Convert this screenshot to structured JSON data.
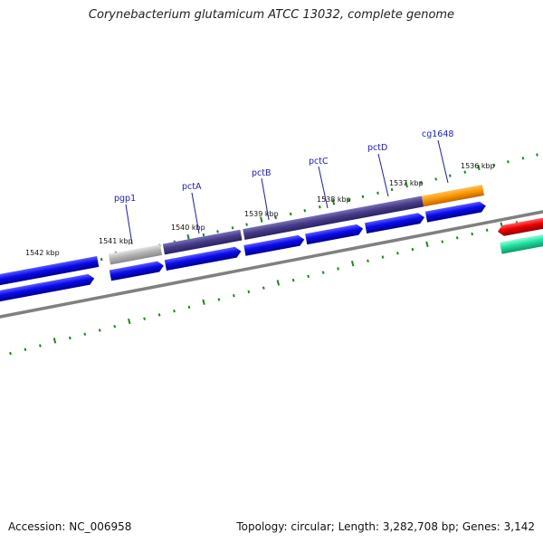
{
  "title": "Corynebacterium glutamicum ATCC 13032, complete genome",
  "accession": "Accession: NC_006958",
  "topology": "Topology: circular; Length: 3,282,708 bp; Genes: 3,142",
  "scale_labels": [
    "1542 kbp",
    "1541 kbp",
    "1540 kbp",
    "1539 kbp",
    "1538 kbp",
    "1537 kbp",
    "1536 kbp"
  ],
  "gene_labels": [
    "pgp1",
    "pctA",
    "pctB",
    "pctC",
    "pctD",
    "cg1648"
  ],
  "colors": {
    "cds": "#0a0aee",
    "highlight": "#473d8b",
    "grey": "#b4b4b4",
    "orange": "#ff9800",
    "red": "#ee0000",
    "teal": "#1fe0a0",
    "backbone": "#808080",
    "tick": "#1a8a1a",
    "label": "#1a1acc"
  }
}
